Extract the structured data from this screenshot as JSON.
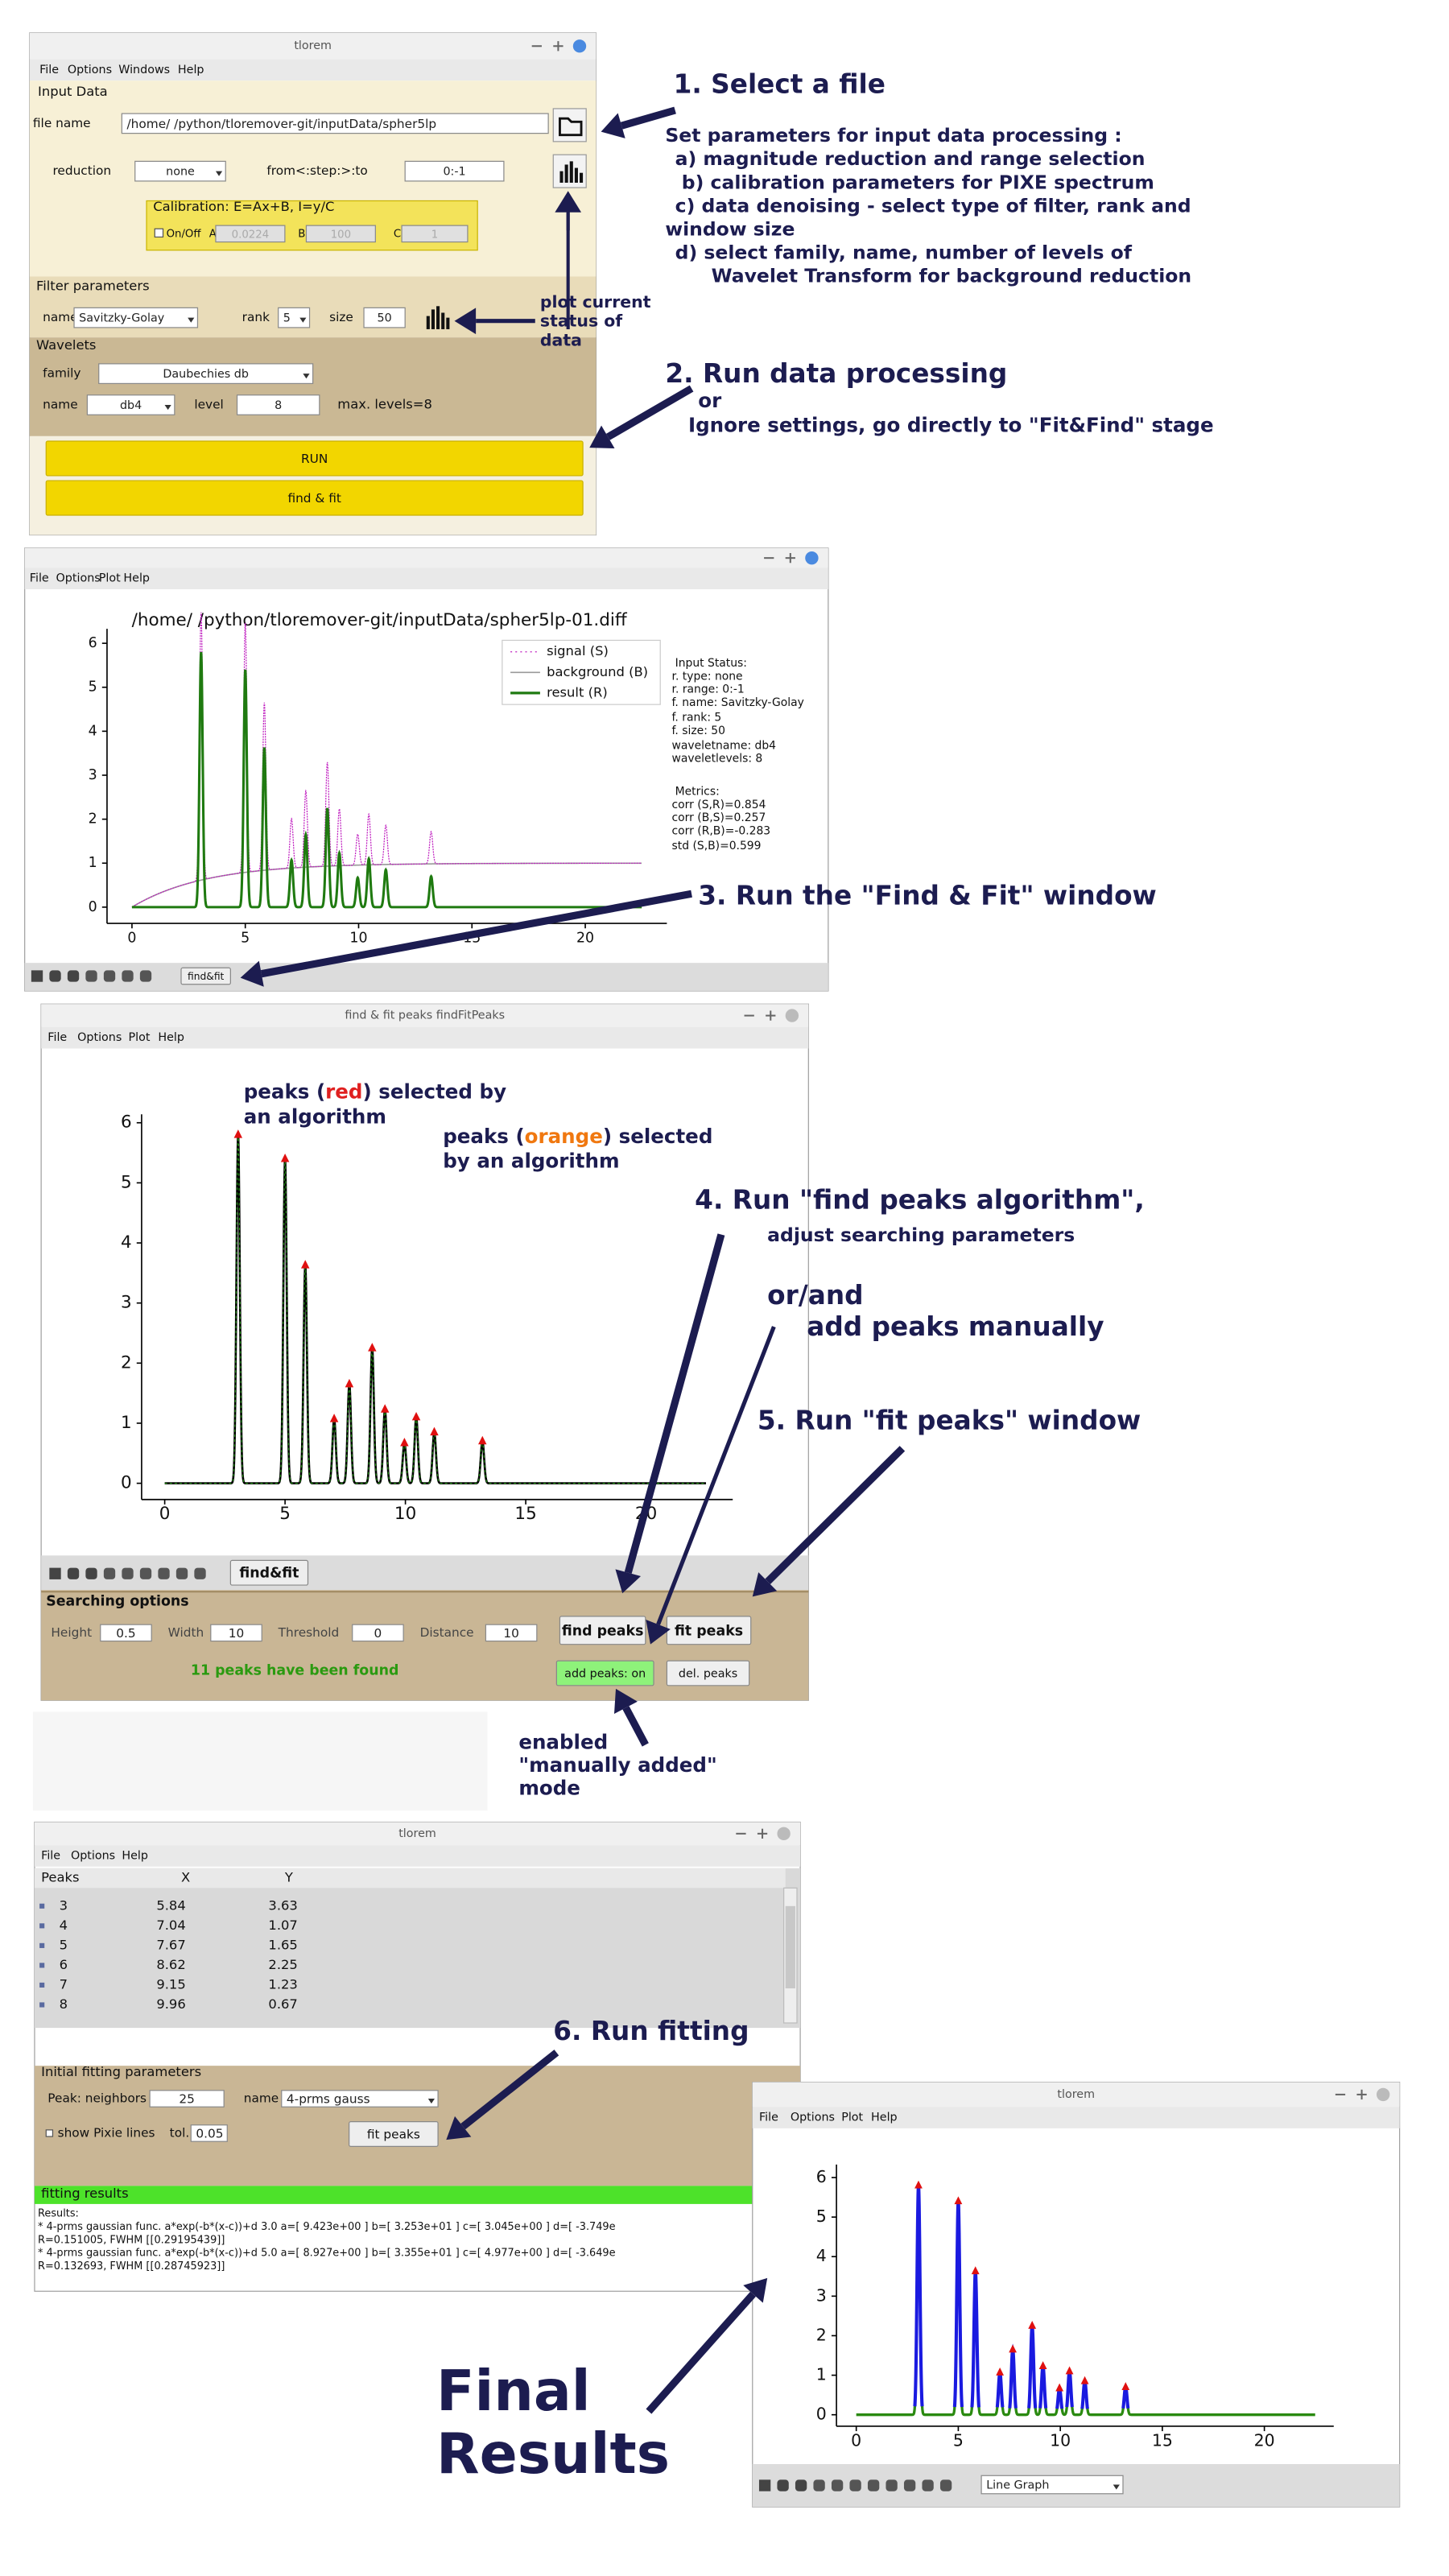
{
  "annotations": {
    "step1_title": "1. Select a file",
    "step1_lines": [
      "Set parameters for input data processing :",
      "a) magnitude reduction and range selection",
      "b) calibration parameters for   PIXE spectrum",
      "c) data denoising - select type of filter, rank and",
      "window size",
      "d) select family, name, number of levels of",
      "Wavelet  Transform for background reduction"
    ],
    "plot_note": [
      "plot current",
      "status of",
      "data"
    ],
    "step2_title": "2. Run data processing",
    "step2_or": "or",
    "step2_text": "Ignore settings, go directly to \"Fit&Find\" stage",
    "step3": "3. Run the \"Find & Fit\" window",
    "peaks_red": [
      "peaks (",
      "red",
      ") selected by",
      "an algorithm"
    ],
    "peaks_orange": [
      "peaks (",
      "orange",
      ") selected",
      "by an algorithm"
    ],
    "step4_title": "4. Run \"find peaks algorithm\",",
    "step4_sub": "adjust searching parameters",
    "step4_or": "or/and",
    "step4_manual": "add peaks manually",
    "step5": "5. Run \"fit peaks\" window",
    "enabled": [
      "enabled",
      "\"manually added\"",
      "mode"
    ],
    "step6": "6. Run fitting",
    "final": [
      "Final",
      "Results"
    ]
  },
  "window1": {
    "title": "tlorem",
    "menu": [
      "File",
      "Options",
      "Windows",
      "Help"
    ],
    "input_data": {
      "label": "Input Data",
      "file_name_label": "file name",
      "file_path": "/home/      /python/tloremover-git/inputData/spher5lp",
      "reduction_label": "reduction",
      "reduction_value": "none",
      "range_label": "from<:step:>:to",
      "range_value": "0:-1"
    },
    "calibration": {
      "label": "Calibration: E=Ax+B, I=y/C",
      "on_off": "On/Off",
      "a_label": "A",
      "a_value": "0.0224",
      "b_label": "B",
      "b_value": "100",
      "c_label": "C",
      "c_value": "1"
    },
    "filter": {
      "label": "Filter parameters",
      "name_label": "name",
      "name_value": "Savitzky-Golay",
      "rank_label": "rank",
      "rank_value": "5",
      "size_label": "size",
      "size_value": "50"
    },
    "wavelets": {
      "label": "Wavelets",
      "family_label": "family",
      "family_value": "Daubechies db",
      "name_label": "name",
      "name_value": "db4",
      "level_label": "level",
      "level_value": "8",
      "max_levels": "max. levels=8"
    },
    "buttons": [
      "RUN",
      "find & fit"
    ]
  },
  "window2": {
    "menu": [
      "File",
      "Options",
      "Plot",
      "Help"
    ],
    "plot": {
      "title": "/home/       /python/tloremover-git/inputData/spher5lp-01.diff",
      "legend": [
        "signal (S)",
        "background (B)",
        "result (R)"
      ],
      "xlim": [
        -1.1,
        23.6
      ],
      "ylim": [
        -0.37,
        6.33
      ],
      "xticks": [
        0,
        5,
        10,
        15,
        20
      ],
      "yticks": [
        0,
        1,
        2,
        3,
        4,
        5,
        6
      ]
    },
    "status": [
      "Input Status:",
      "r. type: none",
      "r. range: 0:-1",
      "f. name: Savitzky-Golay",
      "f. rank: 5",
      "f. size: 50",
      "waveletname: db4",
      "waveletlevels: 8",
      "Metrics:",
      "corr (S,R)=0.854",
      "corr (B,S)=0.257",
      "corr (R,B)=-0.283",
      "std (S,B)=0.599"
    ],
    "toolbar_button": "find&fit"
  },
  "window3": {
    "title": "find & fit peaks findFitPeaks",
    "menu": [
      "File",
      "Options",
      "Plot",
      "Help"
    ],
    "plot": {
      "xlim": [
        -0.96,
        23.6
      ],
      "ylim": [
        -0.27,
        6.14
      ],
      "xticks": [
        0,
        5,
        10,
        15,
        20
      ],
      "yticks": [
        0,
        1,
        2,
        3,
        4,
        5,
        6
      ],
      "peaks": {
        "x": [
          3.05,
          5.0,
          5.84,
          7.04,
          7.67,
          8.62,
          9.15,
          9.96,
          10.45,
          11.2,
          13.2
        ],
        "y": [
          5.8,
          5.4,
          3.63,
          1.07,
          1.65,
          2.25,
          1.23,
          0.67,
          1.1,
          0.85,
          0.7
        ]
      }
    },
    "toolbar_button": "find&fit",
    "searching": {
      "label": "Searching options",
      "fields": [
        {
          "label": "Height",
          "value": 0.5
        },
        {
          "label": "Width",
          "value": 10
        },
        {
          "label": "Threshold",
          "value": 0
        },
        {
          "label": "Distance",
          "value": 10
        }
      ],
      "find_button": "find peaks",
      "fit_button": "fit peaks",
      "message": "11 peaks have been found",
      "add_button": "add peaks: on",
      "del_button": "del. peaks"
    }
  },
  "window4": {
    "title": "tlorem",
    "menu": [
      "File",
      "Options",
      "Help"
    ],
    "table": {
      "header": [
        "Peaks",
        "X",
        "Y"
      ],
      "rows": [
        [
          3,
          5.84,
          3.63
        ],
        [
          4,
          7.04,
          1.07
        ],
        [
          5,
          7.67,
          1.65
        ],
        [
          6,
          8.62,
          2.25
        ],
        [
          7,
          9.15,
          1.23
        ],
        [
          8,
          9.96,
          0.67
        ]
      ]
    },
    "fitting": {
      "label": "Initial fitting parameters",
      "neighbors_label": "Peak: neighbors",
      "neighbors_value": 25,
      "name_label": "name",
      "name_value": "4-prms gauss",
      "pixie_label": "show Pixie lines",
      "tol_label": "tol.",
      "tol_value": 0.05,
      "button": "fit peaks"
    },
    "results": {
      "label": "fitting results",
      "lines": [
        "Results:",
        "* 4-prms gaussian func. a*exp(-b*(x-c))+d     3.0  a=[ 9.423e+00 ] b=[ 3.253e+01 ] c=[ 3.045e+00 ] d=[ -3.749e",
        "R=0.151005,   FWHM [[0.29195439]]",
        "* 4-prms gaussian func. a*exp(-b*(x-c))+d     5.0  a=[ 8.927e+00 ] b=[ 3.355e+01 ] c=[ 4.977e+00 ] d=[ -3.649e",
        "R=0.132693,   FWHM [[0.28745923]]"
      ]
    }
  },
  "window5": {
    "title": "tlorem",
    "menu": [
      "File",
      "Options",
      "Plot",
      "Help"
    ],
    "plot": {
      "xlim": [
        -0.97,
        23.4
      ],
      "ylim": [
        -0.29,
        6.33
      ],
      "xticks": [
        0,
        5,
        10,
        15,
        20
      ],
      "yticks": [
        0,
        1,
        2,
        3,
        4,
        5,
        6
      ]
    },
    "graph_type": "Line Graph"
  }
}
